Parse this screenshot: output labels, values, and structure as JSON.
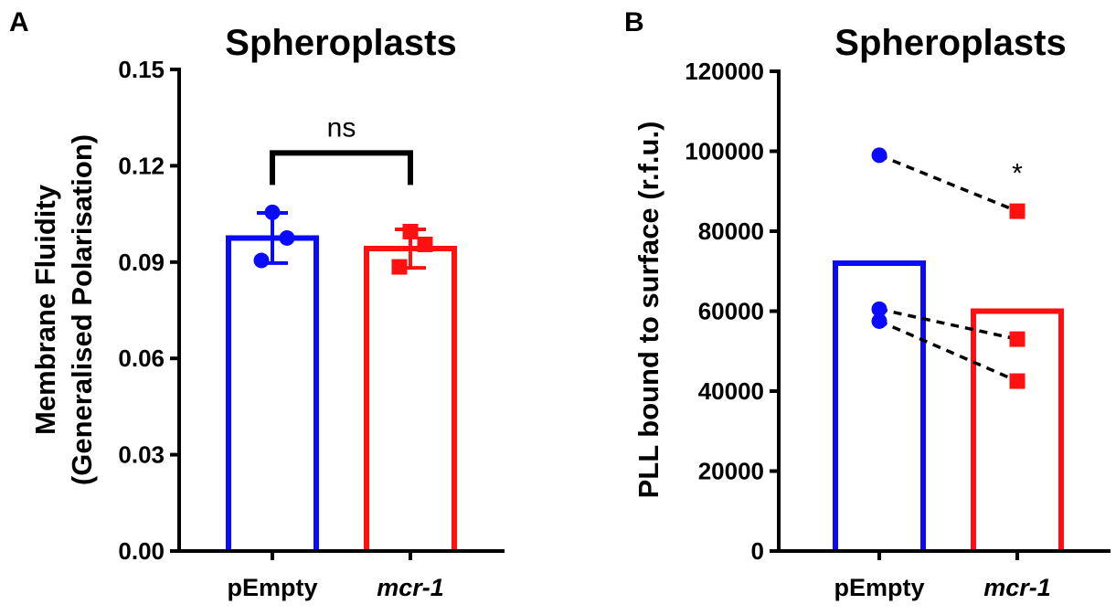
{
  "chart_data": [
    {
      "panel": "A",
      "type": "bar",
      "title": "Spheroplasts",
      "ylabel_lines": [
        "Membrane Fluidity",
        "(Generalised Polarisation)"
      ],
      "xlabel": "",
      "ylim": [
        0,
        0.15
      ],
      "yticks": [
        "0.00",
        "0.03",
        "0.06",
        "0.09",
        "0.12",
        "0.15"
      ],
      "tick_values": [
        0,
        0.03,
        0.06,
        0.09,
        0.12,
        0.15
      ],
      "categories": [
        "pEmpty",
        "mcr-1"
      ],
      "category_italic": [
        false,
        true
      ],
      "values": [
        0.0975,
        0.0942
      ],
      "error_sd": [
        0.0078,
        0.006
      ],
      "points": [
        [
          0.1055,
          0.0975,
          0.0905
        ],
        [
          0.0995,
          0.0955,
          0.0885
        ]
      ],
      "bar_colors": [
        "#0a0aff",
        "#ff1111"
      ],
      "markers": [
        "circle",
        "square"
      ],
      "significance": {
        "label": "ns",
        "between": [
          0,
          1
        ],
        "y": 0.124
      },
      "grid": false
    },
    {
      "panel": "B",
      "type": "bar",
      "title": "Spheroplasts",
      "ylabel": "PLL bound to surface (r.f.u.)",
      "xlabel": "",
      "ylim": [
        0,
        120000
      ],
      "yticks": [
        "0",
        "20000",
        "40000",
        "60000",
        "80000",
        "100000",
        "120000"
      ],
      "tick_values": [
        0,
        20000,
        40000,
        60000,
        80000,
        100000,
        120000
      ],
      "categories": [
        "pEmpty",
        "mcr-1"
      ],
      "category_italic": [
        false,
        true
      ],
      "values": [
        72000,
        60000
      ],
      "points": [
        [
          99000,
          60500,
          57500
        ],
        [
          85000,
          53000,
          42500
        ]
      ],
      "paired_lines": [
        [
          0,
          0
        ],
        [
          1,
          1
        ],
        [
          2,
          2
        ]
      ],
      "bar_colors": [
        "#0a0aff",
        "#ff1111"
      ],
      "markers": [
        "circle",
        "square"
      ],
      "annotation": {
        "label": "*",
        "category": 1,
        "y": 95000
      },
      "grid": false
    }
  ]
}
